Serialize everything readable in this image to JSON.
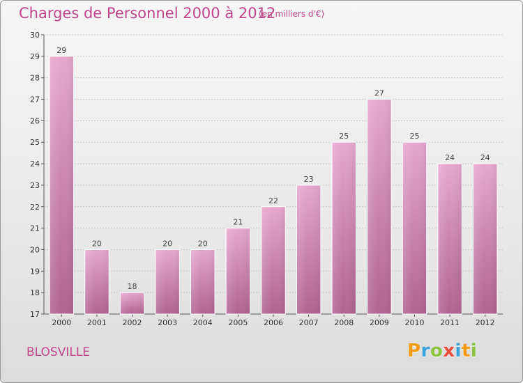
{
  "page": {
    "title": "Charges de Personnel 2000 à 2012",
    "subtitle": "(en milliers d'€)",
    "commune": "BLOSVILLE",
    "logo_text": "Proxiti",
    "logo_colors": [
      "#f39c12",
      "#3aa0d8",
      "#8ac43f",
      "#e74c3c",
      "#3aa0d8",
      "#f39c12",
      "#8ac43f"
    ]
  },
  "colors": {
    "title": "#c0448a",
    "bar_top": "#e7a7cc",
    "bar_bottom": "#b0638f",
    "grid": "#c8c8c8"
  },
  "chart_data": {
    "type": "bar",
    "title": "Charges de Personnel 2000 à 2012",
    "subtitle": "(en milliers d'€)",
    "xlabel": "",
    "ylabel": "",
    "categories": [
      "2000",
      "2001",
      "2002",
      "2003",
      "2004",
      "2005",
      "2006",
      "2007",
      "2008",
      "2009",
      "2010",
      "2011",
      "2012"
    ],
    "values": [
      29,
      20,
      18,
      20,
      20,
      21,
      22,
      23,
      25,
      27,
      25,
      24,
      24
    ],
    "ylim": [
      17,
      30
    ],
    "yticks": [
      17,
      18,
      19,
      20,
      21,
      22,
      23,
      24,
      25,
      26,
      27,
      28,
      29,
      30
    ],
    "grid": true,
    "data_labels": true
  }
}
